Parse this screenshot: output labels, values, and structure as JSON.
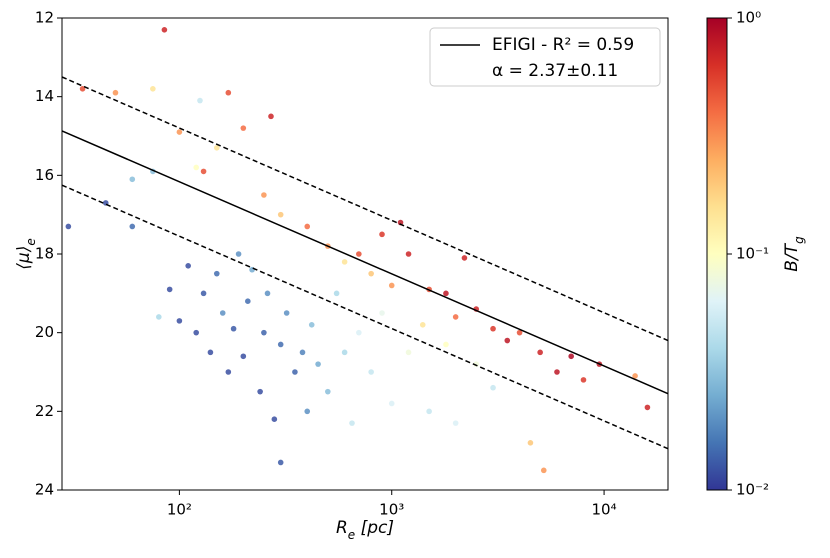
{
  "chart_data": {
    "type": "scatter",
    "x_label": {
      "main": "R",
      "sub": "e",
      "suffix": " [pc]"
    },
    "y_label": {
      "main": "⟨μ⟩",
      "sub": "e"
    },
    "colorbar_label": {
      "main": "B/T",
      "sub": "g"
    },
    "log_x": true,
    "xlim": [
      28,
      20000
    ],
    "ylim": [
      24,
      12
    ],
    "xticks": [
      {
        "value": 100,
        "label": "10²"
      },
      {
        "value": 1000,
        "label": "10³"
      },
      {
        "value": 10000,
        "label": "10⁴"
      }
    ],
    "yticks": [
      12,
      14,
      16,
      18,
      20,
      22,
      24
    ],
    "colormap": "RdYlBu_r",
    "color_lim": [
      0.01,
      1
    ],
    "color_ticks": [
      {
        "value": 0.01,
        "label": "10⁻²"
      },
      {
        "value": 0.1,
        "label": "10⁻¹"
      },
      {
        "value": 1,
        "label": "10⁰"
      }
    ],
    "points": {
      "x": [
        30,
        45,
        60,
        60,
        75,
        80,
        90,
        100,
        110,
        120,
        125,
        130,
        140,
        150,
        160,
        170,
        180,
        190,
        200,
        210,
        220,
        240,
        250,
        260,
        280,
        300,
        300,
        320,
        350,
        380,
        400,
        420,
        450,
        500,
        550,
        600,
        650,
        700,
        800,
        900,
        1000,
        1200,
        1500,
        2000,
        35,
        50,
        75,
        100,
        120,
        150,
        170,
        200,
        250,
        300,
        400,
        500,
        600,
        700,
        800,
        900,
        1000,
        1200,
        1500,
        1800,
        2000,
        2500,
        3000,
        3500,
        4000,
        5000,
        6000,
        7000,
        8000,
        9500,
        14000,
        16000,
        85,
        130,
        270,
        1100,
        2200,
        4500,
        5200,
        3000,
        2500,
        1800,
        1400
      ],
      "y": [
        17.3,
        16.7,
        17.3,
        16.1,
        15.9,
        19.6,
        18.9,
        19.7,
        18.3,
        20.0,
        14.1,
        19.0,
        20.5,
        18.5,
        19.5,
        21.0,
        19.9,
        18.0,
        20.6,
        19.2,
        18.4,
        21.5,
        20.0,
        19.0,
        22.2,
        23.3,
        20.3,
        19.5,
        21.0,
        20.5,
        22.0,
        19.8,
        20.8,
        21.5,
        19.0,
        20.5,
        22.3,
        20.0,
        21.0,
        19.5,
        21.8,
        20.5,
        22.0,
        22.3,
        13.8,
        13.9,
        13.8,
        14.9,
        15.8,
        15.3,
        13.9,
        14.8,
        16.5,
        17.0,
        17.3,
        17.8,
        18.2,
        18.0,
        18.5,
        17.5,
        18.8,
        18.0,
        18.9,
        19.0,
        19.6,
        19.4,
        19.9,
        20.2,
        20.0,
        20.5,
        21.0,
        20.6,
        21.2,
        20.8,
        21.1,
        21.9,
        12.3,
        15.9,
        14.5,
        17.2,
        18.1,
        22.8,
        23.5,
        21.4,
        20.8,
        20.3,
        19.8
      ],
      "color_values": [
        0.012,
        0.012,
        0.015,
        0.03,
        0.03,
        0.04,
        0.012,
        0.012,
        0.012,
        0.012,
        0.05,
        0.013,
        0.012,
        0.015,
        0.02,
        0.012,
        0.013,
        0.02,
        0.012,
        0.015,
        0.025,
        0.012,
        0.014,
        0.02,
        0.012,
        0.013,
        0.015,
        0.02,
        0.014,
        0.018,
        0.02,
        0.03,
        0.025,
        0.03,
        0.04,
        0.04,
        0.05,
        0.06,
        0.05,
        0.07,
        0.06,
        0.08,
        0.05,
        0.06,
        0.5,
        0.3,
        0.15,
        0.3,
        0.1,
        0.15,
        0.5,
        0.4,
        0.3,
        0.2,
        0.4,
        0.3,
        0.15,
        0.5,
        0.2,
        0.6,
        0.3,
        0.7,
        0.5,
        0.8,
        0.4,
        0.7,
        0.6,
        0.8,
        0.5,
        0.7,
        0.8,
        0.9,
        0.6,
        0.8,
        0.3,
        0.7,
        0.7,
        0.5,
        0.7,
        0.8,
        0.7,
        0.2,
        0.3,
        0.05,
        0.08,
        0.1,
        0.15
      ]
    },
    "lines": [
      {
        "x": [
          28,
          20000
        ],
        "y": [
          14.87,
          21.55
        ],
        "style": "solid",
        "color": "#000000"
      },
      {
        "x": [
          28,
          20000
        ],
        "y": [
          13.5,
          20.2
        ],
        "style": "dashed",
        "color": "#000000"
      },
      {
        "x": [
          28,
          20000
        ],
        "y": [
          16.25,
          22.95
        ],
        "style": "dashed",
        "color": "#000000"
      }
    ],
    "legend": {
      "corner": "upper right",
      "entry": [
        "EFIGI - R² = 0.59",
        "α = 2.37±0.11"
      ]
    }
  }
}
